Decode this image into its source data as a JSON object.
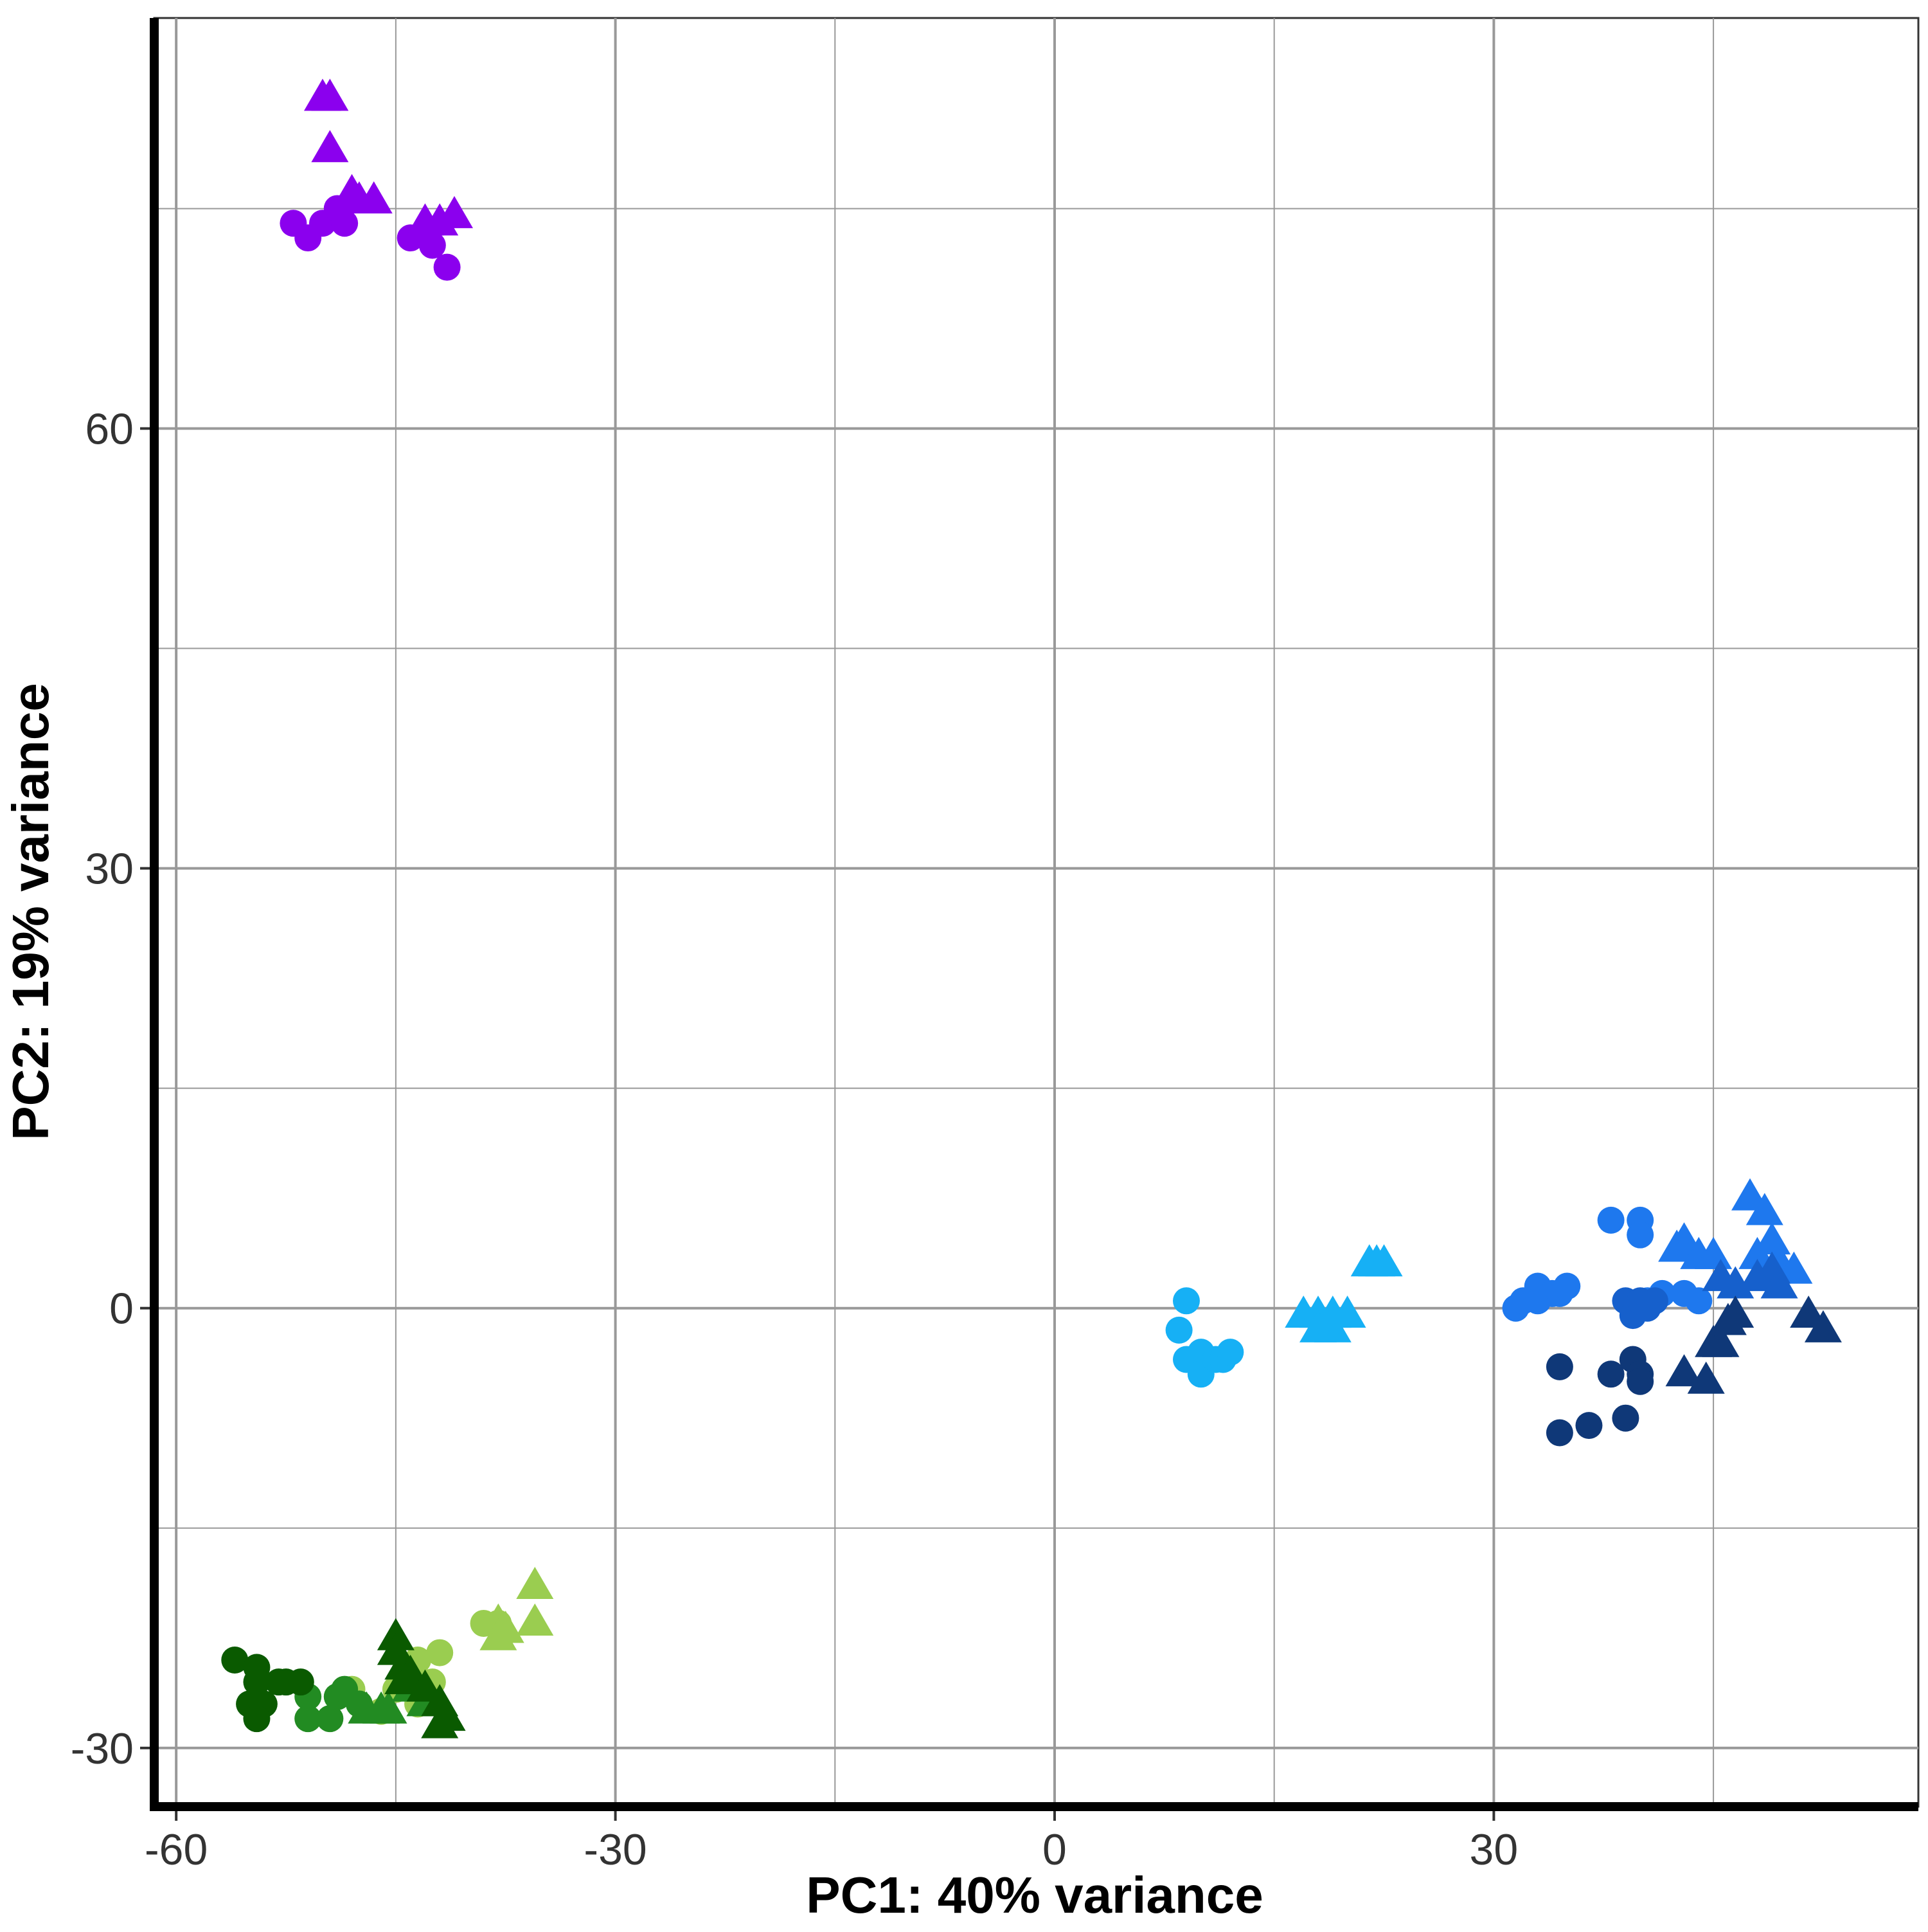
{
  "chart_data": {
    "type": "scatter",
    "title": "",
    "xlabel": "PC1: 40% variance",
    "ylabel": "PC2: 19% variance",
    "xlim": [
      -61.5,
      59
    ],
    "ylim": [
      -34,
      88
    ],
    "x_major_ticks": [
      -60,
      -30,
      0,
      30
    ],
    "x_minor_ticks": [
      -45,
      -15,
      15,
      45
    ],
    "y_major_ticks": [
      -30,
      0,
      30,
      60
    ],
    "y_minor_ticks": [
      -15,
      15,
      45,
      75
    ],
    "x_tick_labels": [
      "-60",
      "-30",
      "0",
      "30"
    ],
    "y_tick_labels": [
      "-30",
      "0",
      "30",
      "60"
    ],
    "grid": true,
    "legend": "none",
    "groups": [
      {
        "color": "#8B00EE",
        "circles": [
          [
            -52,
            74
          ],
          [
            -51,
            73
          ],
          [
            -50,
            74
          ],
          [
            -49,
            75
          ],
          [
            -48.5,
            74
          ],
          [
            -44,
            73
          ],
          [
            -42.5,
            72.5
          ],
          [
            -41.5,
            71
          ]
        ],
        "triangles": [
          [
            -50,
            82.5
          ],
          [
            -49.5,
            82.5
          ],
          [
            -49.5,
            79
          ],
          [
            -48,
            76
          ],
          [
            -47.5,
            75.5
          ],
          [
            -46.5,
            75.5
          ],
          [
            -43,
            74
          ],
          [
            -42,
            74
          ],
          [
            -41,
            74.5
          ]
        ]
      },
      {
        "color": "#9ACD50",
        "circles": [
          [
            -48,
            -26
          ],
          [
            -46,
            -27.5
          ],
          [
            -45,
            -26
          ],
          [
            -44,
            -25
          ],
          [
            -43.5,
            -27
          ],
          [
            -42.5,
            -25.5
          ],
          [
            -43.5,
            -24
          ],
          [
            -42,
            -23.5
          ],
          [
            -39,
            -21.5
          ],
          [
            -38,
            -21.5
          ]
        ],
        "triangles": [
          [
            -38,
            -21.5
          ],
          [
            -38,
            -22.5
          ],
          [
            -37.5,
            -22
          ],
          [
            -35.5,
            -19
          ],
          [
            -35.5,
            -21.5
          ]
        ]
      },
      {
        "color": "#228B22",
        "circles": [
          [
            -51,
            -26.5
          ],
          [
            -51,
            -28
          ],
          [
            -49.5,
            -28
          ],
          [
            -49,
            -26.5
          ],
          [
            -48.5,
            -26
          ],
          [
            -47.5,
            -27
          ]
        ],
        "triangles": [
          [
            -47,
            -27.5
          ],
          [
            -46,
            -27.5
          ],
          [
            -45.5,
            -27.5
          ],
          [
            -44,
            -26
          ],
          [
            -43,
            -27
          ]
        ]
      },
      {
        "color": "#0A5A00",
        "circles": [
          [
            -56,
            -24
          ],
          [
            -54.5,
            -24.5
          ],
          [
            -54.5,
            -25.5
          ],
          [
            -55,
            -27
          ],
          [
            -54,
            -27
          ],
          [
            -54.5,
            -28
          ],
          [
            -53,
            -25.5
          ],
          [
            -52.5,
            -25.5
          ],
          [
            -51.5,
            -25.5
          ]
        ],
        "triangles": [
          [
            -45,
            -22.5
          ],
          [
            -45,
            -23.5
          ],
          [
            -44.5,
            -24.5
          ],
          [
            -44.5,
            -25.5
          ],
          [
            -44,
            -25
          ],
          [
            -43,
            -26
          ],
          [
            -42,
            -27
          ],
          [
            -41.5,
            -28
          ],
          [
            -42,
            -28.5
          ]
        ]
      },
      {
        "color": "#16B0F5",
        "circles": [
          [
            9,
            0.5
          ],
          [
            8.5,
            -1.5
          ],
          [
            9,
            -3.5
          ],
          [
            10,
            -3
          ],
          [
            10,
            -4.5
          ],
          [
            11,
            -3.5
          ],
          [
            11.5,
            -3.5
          ],
          [
            12,
            -3
          ]
        ],
        "triangles": [
          [
            17,
            -0.5
          ],
          [
            18,
            -0.5
          ],
          [
            18,
            -1.5
          ],
          [
            19,
            -0.5
          ],
          [
            19,
            -1.5
          ],
          [
            20,
            -0.5
          ],
          [
            21.5,
            3
          ],
          [
            22,
            3
          ],
          [
            22.5,
            3
          ]
        ]
      },
      {
        "color": "#1E78EE",
        "circles": [
          [
            31.5,
            0
          ],
          [
            32,
            0.5
          ],
          [
            33,
            1.5
          ],
          [
            33,
            0.5
          ],
          [
            34,
            1
          ],
          [
            34.5,
            1
          ],
          [
            35,
            1.5
          ],
          [
            38,
            6
          ],
          [
            40,
            6
          ],
          [
            40,
            5
          ],
          [
            39.5,
            0
          ],
          [
            40.5,
            0.5
          ],
          [
            41.5,
            1
          ],
          [
            43,
            1
          ],
          [
            44,
            0.5
          ]
        ],
        "triangles": [
          [
            42.5,
            4
          ],
          [
            43,
            4.5
          ],
          [
            44,
            3.5
          ],
          [
            45,
            3.5
          ],
          [
            47.5,
            7.5
          ],
          [
            48.5,
            6.5
          ],
          [
            48,
            3.5
          ],
          [
            49,
            4.5
          ],
          [
            49.5,
            3
          ],
          [
            50.5,
            2.5
          ]
        ]
      },
      {
        "color": "#1660CC",
        "circles": [
          [
            39,
            0.5
          ],
          [
            39.5,
            -0.5
          ],
          [
            40,
            0.5
          ],
          [
            40.5,
            0
          ],
          [
            41,
            0.5
          ]
        ],
        "triangles": [
          [
            45.5,
            2
          ],
          [
            46.5,
            1.5
          ],
          [
            48,
            2
          ],
          [
            49,
            2.5
          ],
          [
            49.5,
            1.5
          ]
        ]
      },
      {
        "color": "#0F3878",
        "circles": [
          [
            34.5,
            -4
          ],
          [
            34.5,
            -8.5
          ],
          [
            36.5,
            -8
          ],
          [
            38,
            -4.5
          ],
          [
            39,
            -7.5
          ],
          [
            39.5,
            -3.5
          ],
          [
            40,
            -4.5
          ],
          [
            40,
            -5
          ]
        ],
        "triangles": [
          [
            43,
            -4.5
          ],
          [
            44.5,
            -5
          ],
          [
            45,
            -2.5
          ],
          [
            45.5,
            -2.5
          ],
          [
            46,
            -1
          ],
          [
            46.5,
            -0.5
          ],
          [
            51.5,
            -0.5
          ],
          [
            52.5,
            -1.5
          ]
        ]
      }
    ]
  }
}
